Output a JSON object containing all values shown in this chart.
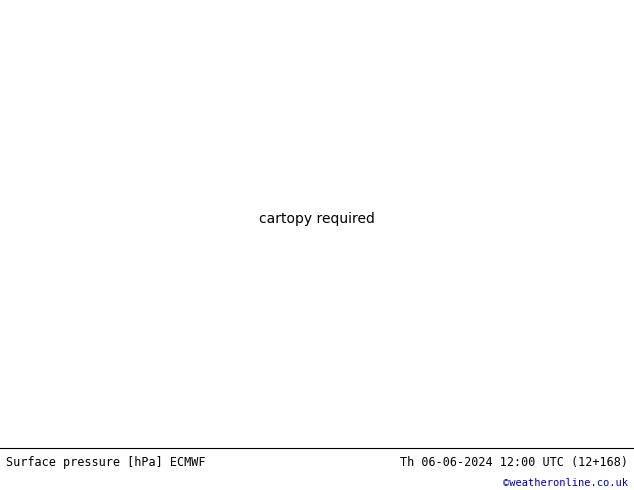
{
  "title_left": "Surface pressure [hPa] ECMWF",
  "title_right": "Th 06-06-2024 12:00 UTC (12+168)",
  "credit": "©weatheronline.co.uk",
  "bg_color": "#d8d8d8",
  "land_color": "#b8e890",
  "sea_color": "#d8d8d8",
  "mountain_color": "#a8a8a8",
  "bottom_bar_color": "#ffffff",
  "title_fontsize": 8.5,
  "credit_color": "#0000bb",
  "black_contour_color": "#000000",
  "red_contour_color": "#cc0000",
  "blue_contour_color": "#0000cc",
  "contour_linewidth": 1.1,
  "label_fontsize": 6.5,
  "map_extent": [
    -60,
    50,
    25,
    75
  ]
}
